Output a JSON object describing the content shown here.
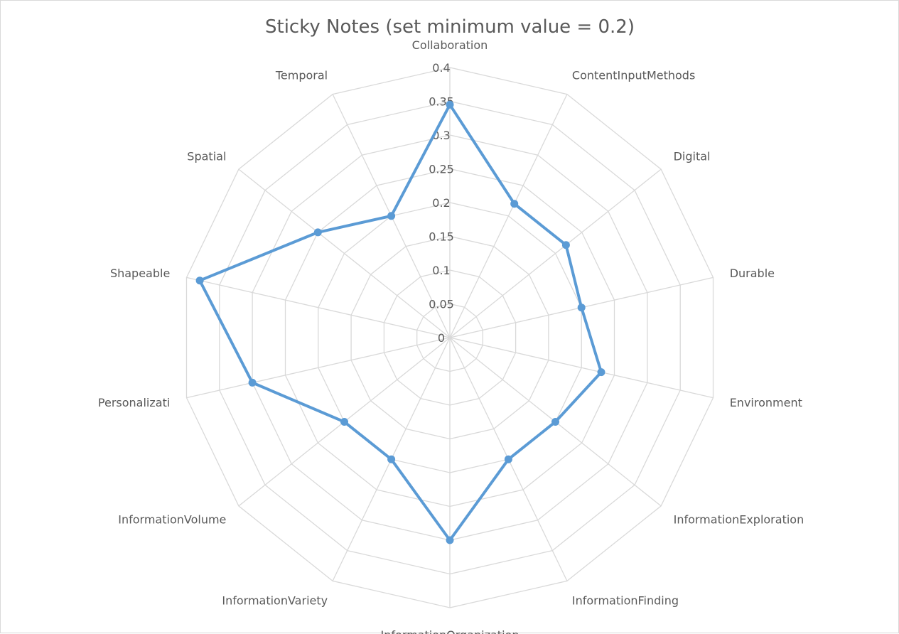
{
  "chart_data": {
    "type": "radar",
    "title": "Sticky Notes (set minimum value = 0.2)",
    "categories": [
      "Collaboration",
      "ContentInputMethods",
      "Digital",
      "Durable",
      "Environment",
      "InformationExploration",
      "InformationFinding",
      "InformationOrganization",
      "InformationVariety",
      "InformationVolume",
      "Personalizati",
      "Shapeable",
      "Spatial",
      "Temporal"
    ],
    "series": [
      {
        "name": "Sticky Notes",
        "color": "#5b9bd5",
        "values": [
          0.345,
          0.22,
          0.22,
          0.2,
          0.23,
          0.2,
          0.2,
          0.3,
          0.2,
          0.2,
          0.3,
          0.38,
          0.25,
          0.2
        ]
      }
    ],
    "rlim": [
      0,
      0.4
    ],
    "ticks": [
      0,
      0.05,
      0.1,
      0.15,
      0.2,
      0.25,
      0.3,
      0.35,
      0.4
    ],
    "tick_labels": [
      "0",
      "0.05",
      "0.1",
      "0.15",
      "0.2",
      "0.25",
      "0.3",
      "0.35",
      "0.4"
    ],
    "grid": true,
    "legend": "none"
  }
}
